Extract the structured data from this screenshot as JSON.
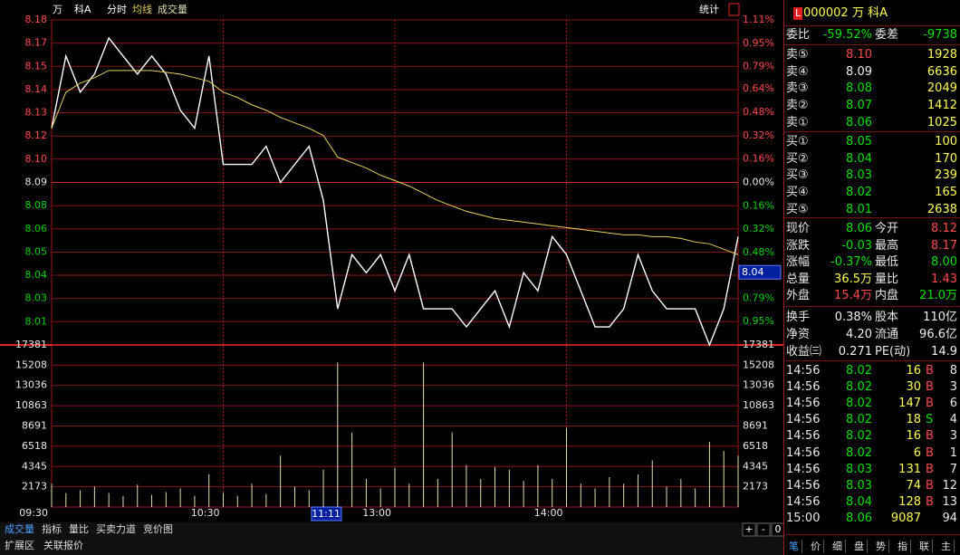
{
  "chart_data": {
    "type": "line",
    "stock": "万",
    "stock2": "科A",
    "stats_button": "统计",
    "x": [
      0,
      5,
      10,
      15,
      20,
      25,
      30,
      35,
      40,
      45,
      50,
      55,
      60,
      65,
      70,
      75,
      80,
      85,
      90,
      95,
      100,
      105,
      110,
      115,
      120,
      125,
      130,
      135,
      140,
      145,
      150,
      155,
      160,
      165,
      170,
      175,
      180,
      185,
      190,
      195,
      200,
      205,
      210,
      215,
      220,
      225,
      230,
      235,
      240
    ],
    "series": [
      {
        "name": "分时",
        "color": "#ffffff",
        "values": [
          8.12,
          8.16,
          8.14,
          8.15,
          8.17,
          8.16,
          8.15,
          8.16,
          8.15,
          8.13,
          8.12,
          8.16,
          8.1,
          8.1,
          8.1,
          8.11,
          8.09,
          8.1,
          8.11,
          8.08,
          8.02,
          8.05,
          8.04,
          8.05,
          8.03,
          8.05,
          8.02,
          8.02,
          8.02,
          8.01,
          8.02,
          8.03,
          8.01,
          8.04,
          8.03,
          8.06,
          8.05,
          8.03,
          8.01,
          8.01,
          8.02,
          8.05,
          8.03,
          8.02,
          8.02,
          8.02,
          8.0,
          8.02,
          8.06
        ]
      },
      {
        "name": "均线",
        "color": "#e8d060",
        "values": [
          8.12,
          8.14,
          8.145,
          8.148,
          8.152,
          8.152,
          8.152,
          8.152,
          8.151,
          8.15,
          8.148,
          8.146,
          8.14,
          8.137,
          8.133,
          8.13,
          8.126,
          8.123,
          8.12,
          8.116,
          8.104,
          8.101,
          8.098,
          8.094,
          8.091,
          8.088,
          8.084,
          8.08,
          8.077,
          8.074,
          8.072,
          8.07,
          8.069,
          8.068,
          8.067,
          8.066,
          8.065,
          8.064,
          8.063,
          8.062,
          8.061,
          8.061,
          8.06,
          8.06,
          8.059,
          8.057,
          8.056,
          8.053,
          8.05
        ]
      }
    ],
    "volume": {
      "name": "成交量",
      "color": "#e0e0b0",
      "values": [
        2500,
        1500,
        1800,
        2200,
        1500,
        1200,
        2400,
        1300,
        1600,
        2000,
        1200,
        3500,
        1500,
        1200,
        2500,
        1400,
        5500,
        2200,
        1800,
        4000,
        15500,
        8000,
        3000,
        2000,
        4200,
        2500,
        15500,
        3000,
        8000,
        4500,
        3000,
        4300,
        4000,
        2800,
        4500,
        3000,
        8500,
        2500,
        2000,
        3200,
        2500,
        3500,
        5000,
        2200,
        3000,
        2000,
        7000,
        6000,
        5500
      ]
    },
    "xlim": [
      0,
      240
    ],
    "xticks": [
      {
        "value": 0,
        "label": "09:30"
      },
      {
        "value": 60,
        "label": "10:30"
      },
      {
        "value": 120,
        "label": "13:00"
      },
      {
        "value": 180,
        "label": "14:00"
      }
    ],
    "ylim": [
      8.0,
      8.18
    ],
    "yticks": [
      8.18,
      {
        "value": 8.1671,
        "label": "8.17"
      },
      {
        "value": 8.1543,
        "label": "8.15"
      },
      {
        "value": 8.1414,
        "label": "8.14"
      },
      {
        "value": 8.1286,
        "label": "8.13"
      },
      {
        "value": 8.1157,
        "label": "8.12"
      },
      {
        "value": 8.1029,
        "label": "8.10"
      },
      8.09,
      {
        "value": 8.0771,
        "label": "8.08"
      },
      {
        "value": 8.0643,
        "label": "8.06"
      },
      {
        "value": 8.0514,
        "label": "8.05"
      },
      {
        "value": 8.0386,
        "label": "8.04"
      },
      {
        "value": 8.0257,
        "label": "8.03"
      },
      {
        "value": 8.0129,
        "label": "8.01"
      }
    ],
    "y2lim": [
      -1.11,
      1.11
    ],
    "y2ticks": [
      {
        "value": 1.11,
        "label": "1.11%"
      },
      {
        "value": 0.95,
        "label": "0.95%"
      },
      {
        "value": 0.79,
        "label": "0.79%"
      },
      {
        "value": 0.64,
        "label": "0.64%"
      },
      {
        "value": 0.48,
        "label": "0.48%"
      },
      {
        "value": 0.32,
        "label": "0.32%"
      },
      {
        "value": 0.16,
        "label": "0.16%"
      },
      {
        "value": 0,
        "label": "0.00%"
      },
      {
        "value": -0.16,
        "label": "0.16%"
      },
      {
        "value": -0.32,
        "label": "0.32%"
      },
      {
        "value": -0.48,
        "label": "0.48%"
      },
      {
        "value": -0.64,
        "label": "0.64%"
      },
      {
        "value": -0.79,
        "label": "0.79%"
      },
      {
        "value": -0.95,
        "label": "0.95%"
      }
    ],
    "vlim": [
      0,
      17381
    ],
    "vticks": [
      17381,
      15208,
      13036,
      10863,
      8691,
      6518,
      4345,
      2173
    ],
    "cursor": {
      "value": 101,
      "label": "11:11"
    },
    "cursor_price": 8.04,
    "grid": true
  },
  "quote": {
    "badge": "L",
    "code": "000002",
    "name": "万  科A",
    "ratio": [
      "委比",
      "-59.52%",
      "委差",
      "-9738"
    ],
    "sell": [
      [
        "卖⑤",
        "8.10",
        "1928"
      ],
      [
        "卖④",
        "8.09",
        "6636"
      ],
      [
        "卖③",
        "8.08",
        "2049"
      ],
      [
        "卖②",
        "8.07",
        "1412"
      ],
      [
        "卖①",
        "8.06",
        "1025"
      ]
    ],
    "buy": [
      [
        "买①",
        "8.05",
        "100"
      ],
      [
        "买②",
        "8.04",
        "170"
      ],
      [
        "买③",
        "8.03",
        "239"
      ],
      [
        "买④",
        "8.02",
        "165"
      ],
      [
        "买⑤",
        "8.01",
        "2638"
      ]
    ],
    "stats": [
      [
        "现价",
        "8.06",
        "今开",
        "8.12"
      ],
      [
        "涨跌",
        "-0.03",
        "最高",
        "8.17"
      ],
      [
        "涨幅",
        "-0.37%",
        "最低",
        "8.00"
      ],
      [
        "总量",
        "36.5万",
        "量比",
        "1.43"
      ],
      [
        "外盘",
        "15.4万",
        "内盘",
        "21.0万"
      ]
    ],
    "finance": [
      [
        "换手",
        "0.38%",
        "股本",
        "110亿"
      ],
      [
        "净资",
        "4.20",
        "流通",
        "96.6亿"
      ],
      [
        "收益㈢",
        "0.271",
        "PE(动)",
        "14.9"
      ]
    ],
    "trades": [
      [
        "14:56",
        "8.02",
        "16",
        "B",
        "8"
      ],
      [
        "14:56",
        "8.02",
        "30",
        "B",
        "3"
      ],
      [
        "14:56",
        "8.02",
        "147",
        "B",
        "6"
      ],
      [
        "14:56",
        "8.02",
        "18",
        "S",
        "4"
      ],
      [
        "14:56",
        "8.02",
        "16",
        "B",
        "3"
      ],
      [
        "14:56",
        "8.02",
        "6",
        "B",
        "1"
      ],
      [
        "14:56",
        "8.03",
        "131",
        "B",
        "7"
      ],
      [
        "14:56",
        "8.03",
        "74",
        "B",
        "12"
      ],
      [
        "14:56",
        "8.04",
        "128",
        "B",
        "13"
      ],
      [
        "15:00",
        "8.06",
        "9087",
        "94"
      ]
    ],
    "tabs": [
      "笔",
      "价",
      "细",
      "盘",
      "势",
      "指",
      "联",
      "主"
    ]
  },
  "bottom": {
    "tabs": [
      "成交量",
      "指标",
      "量比",
      "买卖力道",
      "竞价图"
    ],
    "tabs2": [
      "扩展区",
      "关联报价"
    ],
    "buttons": [
      "+",
      "-",
      "0"
    ]
  }
}
